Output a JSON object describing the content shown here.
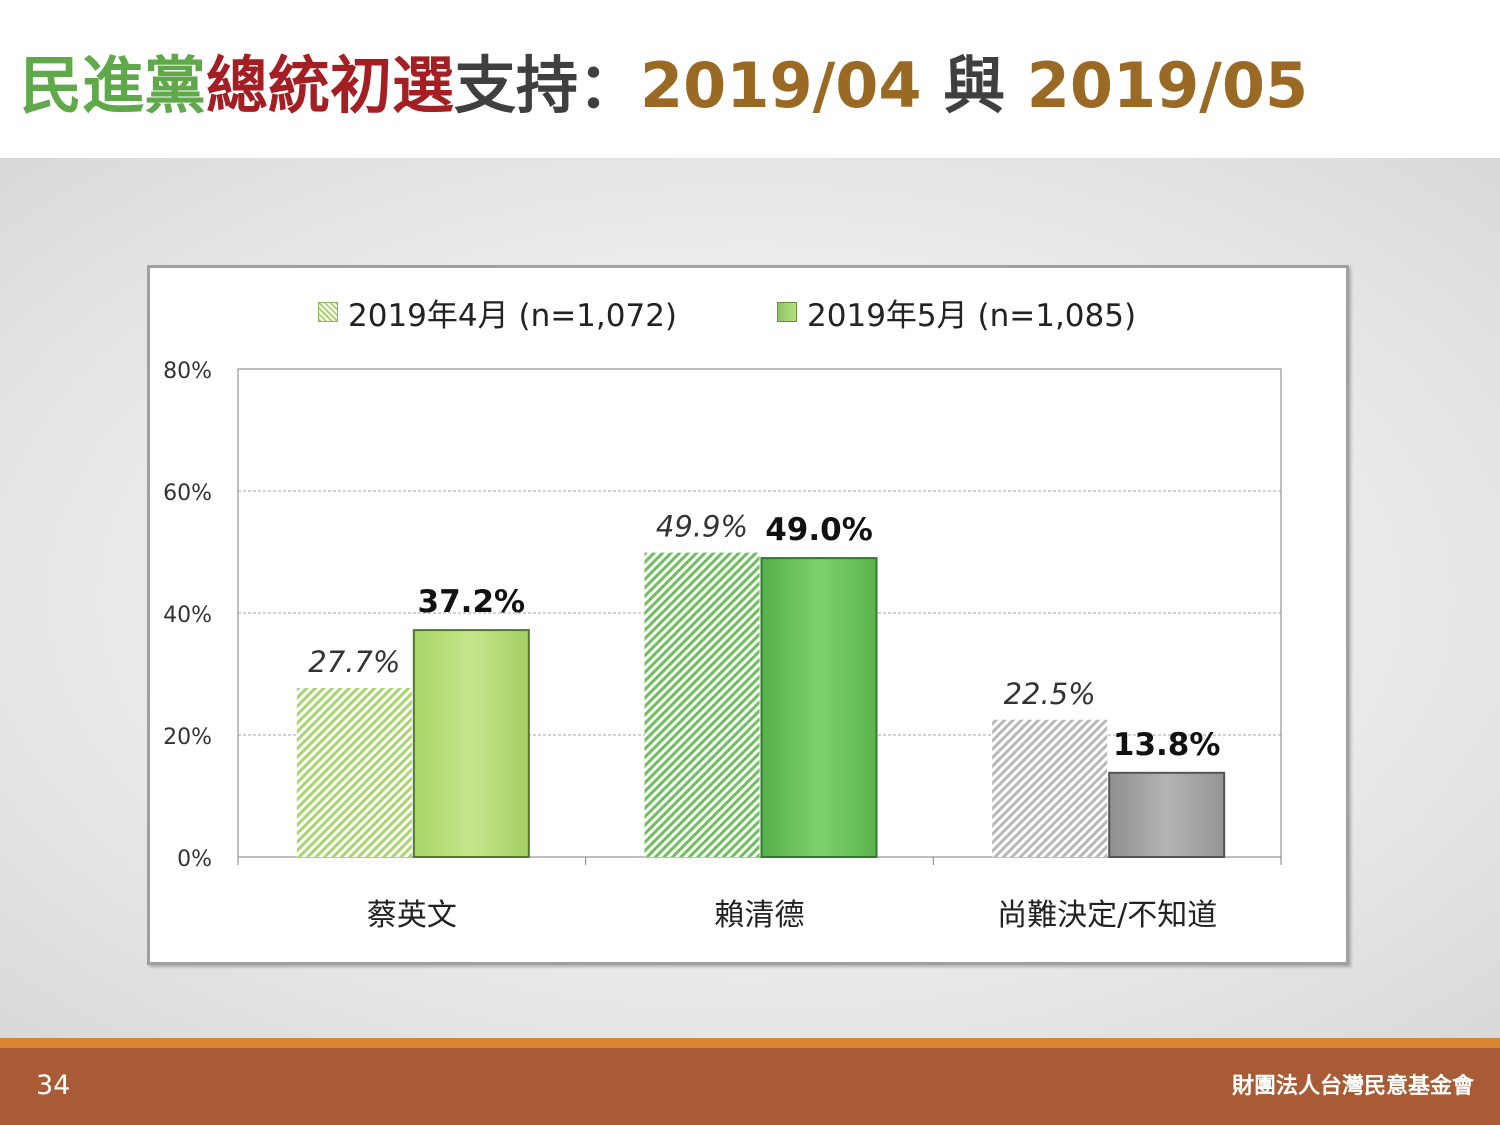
{
  "title": {
    "part1": "民進黨",
    "part2": "總統初選",
    "part3": "支持：",
    "part4": "2019/04",
    "part5": " 與 ",
    "part6": "2019/05",
    "colors": {
      "green": "#5fa94a",
      "red": "#a31f24",
      "gray": "#3f3f3f",
      "brown": "#9a6a25"
    }
  },
  "footer": {
    "page_number": "34",
    "organization": "財團法人台灣民意基金會"
  },
  "legend": {
    "april": "2019年4月 (n=1,072)",
    "may": "2019年5月 (n=1,085)"
  },
  "chart_data": {
    "type": "bar",
    "categories": [
      "蔡英文",
      "賴清德",
      "尚難決定/不知道"
    ],
    "series": [
      {
        "name": "2019年4月 (n=1,072)",
        "values": [
          27.7,
          49.9,
          22.5
        ],
        "labels": [
          "27.7%",
          "49.9%",
          "22.5%"
        ],
        "style": "hatched"
      },
      {
        "name": "2019年5月 (n=1,085)",
        "values": [
          37.2,
          49.0,
          13.8
        ],
        "labels": [
          "37.2%",
          "49.0%",
          "13.8%"
        ],
        "style": "solid"
      }
    ],
    "ylim": [
      0,
      80
    ],
    "yticks": [
      "0%",
      "20%",
      "40%",
      "60%",
      "80%"
    ],
    "ytick_values": [
      0,
      20,
      40,
      60,
      80
    ],
    "grid": true,
    "legend_position": "top",
    "colors": {
      "hatch_green": "#a9d46e",
      "hatch_dark_green": "#7cc05e",
      "hatch_gray": "#bdbdbd",
      "solid_light_green": "#b8e07a",
      "solid_green": "#6ec25d",
      "solid_gray": "#a6a6a6"
    }
  }
}
